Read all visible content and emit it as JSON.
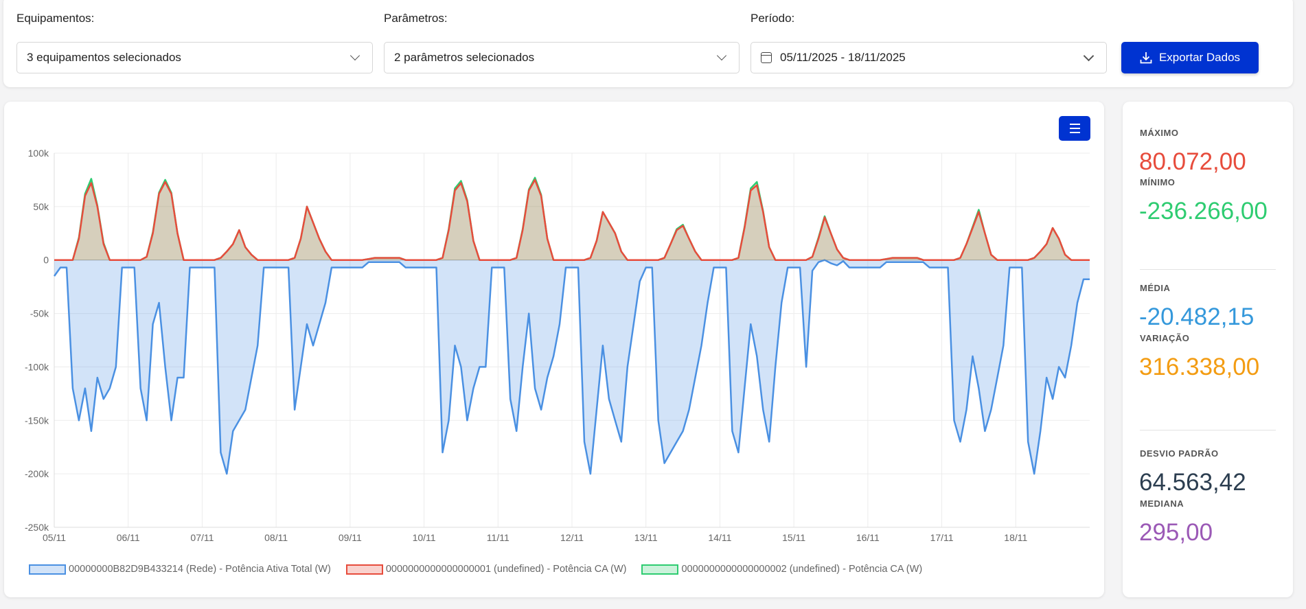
{
  "filters": {
    "equipment_label": "Equipamentos:",
    "equipment_value": "3 equipamentos selecionados",
    "params_label": "Parâmetros:",
    "params_value": "2 parâmetros selecionados",
    "period_label": "Período:",
    "period_value": "05/11/2025 - 18/11/2025",
    "export_label": "Exportar Dados"
  },
  "stats": {
    "max_label": "MÁXIMO",
    "max_value": "80.072,00",
    "max_color": "#e74c3c",
    "min_label": "MÍNIMO",
    "min_value": "-236.266,00",
    "min_color": "#2ecc71",
    "mean_label": "MÉDIA",
    "mean_value": "-20.482,15",
    "mean_color": "#3498db",
    "range_label": "VARIAÇÃO",
    "range_value": "316.338,00",
    "range_color": "#f39c12",
    "std_label": "DESVIO PADRÃO",
    "std_value": "64.563,42",
    "std_color": "#2c3e50",
    "median_label": "MEDIANA",
    "median_value": "295,00",
    "median_color": "#9b59b6"
  },
  "chart_data": {
    "type": "area",
    "ylim": [
      -250000,
      100000
    ],
    "yticks": [
      {
        "v": 100000,
        "label": "100k"
      },
      {
        "v": 50000,
        "label": "50k"
      },
      {
        "v": 0,
        "label": "0"
      },
      {
        "v": -50000,
        "label": "-50k"
      },
      {
        "v": -100000,
        "label": "-100k"
      },
      {
        "v": -150000,
        "label": "-150k"
      },
      {
        "v": -200000,
        "label": "-200k"
      },
      {
        "v": -250000,
        "label": "-250k"
      }
    ],
    "xticks": [
      "05/11",
      "06/11",
      "07/11",
      "08/11",
      "09/11",
      "10/11",
      "11/11",
      "12/11",
      "13/11",
      "14/11",
      "15/11",
      "16/11",
      "17/11",
      "18/11"
    ],
    "grid": true,
    "legend_position": "bottom",
    "unit": "W",
    "sample_hours": [
      "00:00",
      "02:00",
      "04:00",
      "06:00",
      "08:00",
      "10:00",
      "12:00",
      "14:00",
      "16:00",
      "18:00",
      "20:00",
      "22:00"
    ],
    "series": [
      {
        "name": "00000000B82D9B433214 (Rede) - Potência Ativa Total (W)",
        "key": "rede",
        "color": "#4a90e2"
      },
      {
        "name": "0000000000000000001 (undefined) - Potência CA (W)",
        "key": "inv1",
        "color": "#e74c3c"
      },
      {
        "name": "0000000000000000002 (undefined) - Potência CA (W)",
        "key": "inv2",
        "color": "#2ecc71"
      }
    ],
    "days": [
      {
        "date": "05/11",
        "rede": [
          -15000,
          -7000,
          -7000,
          -120000,
          -150000,
          -120000,
          -160000,
          -110000,
          -130000,
          -120000,
          -100000,
          -7000
        ],
        "inv1": [
          0,
          0,
          0,
          0,
          20000,
          60000,
          72000,
          50000,
          15000,
          0,
          0,
          0
        ],
        "inv2": [
          0,
          0,
          0,
          0,
          21000,
          62000,
          76000,
          51000,
          16000,
          0,
          0,
          0
        ]
      },
      {
        "date": "06/11",
        "rede": [
          -7000,
          -7000,
          -120000,
          -150000,
          -60000,
          -40000,
          -100000,
          -150000,
          -110000,
          -110000,
          -7000,
          -7000
        ],
        "inv1": [
          0,
          0,
          0,
          3000,
          25000,
          62000,
          73000,
          62000,
          25000,
          0,
          0,
          0
        ],
        "inv2": [
          0,
          0,
          0,
          3000,
          26000,
          63000,
          75000,
          63000,
          25000,
          0,
          0,
          0
        ]
      },
      {
        "date": "07/11",
        "rede": [
          -7000,
          -7000,
          -7000,
          -180000,
          -200000,
          -160000,
          -150000,
          -140000,
          -110000,
          -80000,
          -7000,
          -7000
        ],
        "inv1": [
          0,
          0,
          0,
          2000,
          8000,
          15000,
          28000,
          12000,
          5000,
          0,
          0,
          0
        ],
        "inv2": [
          0,
          0,
          0,
          2000,
          8000,
          15000,
          28000,
          12000,
          5000,
          0,
          0,
          0
        ]
      },
      {
        "date": "08/11",
        "rede": [
          -7000,
          -7000,
          -7000,
          -140000,
          -100000,
          -60000,
          -80000,
          -60000,
          -40000,
          -7000,
          -7000,
          -7000
        ],
        "inv1": [
          0,
          0,
          0,
          2000,
          20000,
          50000,
          35000,
          20000,
          8000,
          0,
          0,
          0
        ],
        "inv2": [
          0,
          0,
          0,
          2000,
          20000,
          50000,
          35000,
          20000,
          8000,
          0,
          0,
          0
        ]
      },
      {
        "date": "09/11",
        "rede": [
          -7000,
          -7000,
          -7000,
          -2000,
          -2000,
          -2000,
          -2000,
          -2000,
          -2000,
          -7000,
          -7000,
          -7000
        ],
        "inv1": [
          0,
          0,
          0,
          1000,
          2000,
          2000,
          2000,
          2000,
          2000,
          0,
          0,
          0
        ],
        "inv2": [
          0,
          0,
          0,
          1000,
          2000,
          2000,
          2000,
          2000,
          2000,
          0,
          0,
          0
        ]
      },
      {
        "date": "10/11",
        "rede": [
          -7000,
          -7000,
          -7000,
          -180000,
          -150000,
          -80000,
          -100000,
          -150000,
          -120000,
          -100000,
          -100000,
          -7000
        ],
        "inv1": [
          0,
          0,
          0,
          2000,
          28000,
          65000,
          72000,
          55000,
          18000,
          0,
          0,
          0
        ],
        "inv2": [
          0,
          0,
          0,
          2000,
          29000,
          67000,
          74000,
          56000,
          18000,
          0,
          0,
          0
        ]
      },
      {
        "date": "11/11",
        "rede": [
          -7000,
          -7000,
          -130000,
          -160000,
          -100000,
          -50000,
          -120000,
          -140000,
          -110000,
          -90000,
          -60000,
          -7000
        ],
        "inv1": [
          0,
          0,
          0,
          2000,
          28000,
          65000,
          75000,
          60000,
          20000,
          0,
          0,
          0
        ],
        "inv2": [
          0,
          0,
          0,
          2000,
          29000,
          66000,
          77000,
          61000,
          20000,
          0,
          0,
          0
        ]
      },
      {
        "date": "12/11",
        "rede": [
          -7000,
          -7000,
          -170000,
          -200000,
          -140000,
          -80000,
          -130000,
          -150000,
          -170000,
          -100000,
          -60000,
          -20000
        ],
        "inv1": [
          0,
          0,
          0,
          2000,
          18000,
          45000,
          35000,
          25000,
          8000,
          0,
          0,
          0
        ],
        "inv2": [
          0,
          0,
          0,
          2000,
          18000,
          45000,
          35000,
          25000,
          8000,
          0,
          0,
          0
        ]
      },
      {
        "date": "13/11",
        "rede": [
          -7000,
          -7000,
          -150000,
          -190000,
          -180000,
          -170000,
          -160000,
          -140000,
          -110000,
          -80000,
          -40000,
          -7000
        ],
        "inv1": [
          0,
          0,
          0,
          2000,
          15000,
          28000,
          32000,
          20000,
          8000,
          0,
          0,
          0
        ],
        "inv2": [
          0,
          0,
          0,
          2000,
          15000,
          29000,
          33000,
          20000,
          8000,
          0,
          0,
          0
        ]
      },
      {
        "date": "14/11",
        "rede": [
          -7000,
          -7000,
          -160000,
          -180000,
          -120000,
          -60000,
          -90000,
          -140000,
          -170000,
          -100000,
          -40000,
          -7000
        ],
        "inv1": [
          0,
          0,
          0,
          2000,
          30000,
          65000,
          70000,
          45000,
          12000,
          0,
          0,
          0
        ],
        "inv2": [
          0,
          0,
          0,
          2000,
          31000,
          67000,
          73000,
          46000,
          12000,
          0,
          0,
          0
        ]
      },
      {
        "date": "15/11",
        "rede": [
          -7000,
          -7000,
          -100000,
          -10000,
          -2000,
          0,
          -3000,
          -5000,
          -1000,
          -7000,
          -7000,
          -7000
        ],
        "inv1": [
          0,
          0,
          0,
          3000,
          20000,
          40000,
          25000,
          10000,
          2000,
          0,
          0,
          0
        ],
        "inv2": [
          0,
          0,
          0,
          3000,
          21000,
          41000,
          25000,
          10000,
          2000,
          0,
          0,
          0
        ]
      },
      {
        "date": "16/11",
        "rede": [
          -7000,
          -7000,
          -7000,
          -2000,
          -2000,
          -2000,
          -2000,
          -2000,
          -2000,
          -2000,
          -7000,
          -7000
        ],
        "inv1": [
          0,
          0,
          0,
          1000,
          2000,
          2000,
          2000,
          2000,
          2000,
          0,
          0,
          0
        ],
        "inv2": [
          0,
          0,
          0,
          1000,
          2000,
          2000,
          2000,
          2000,
          2000,
          0,
          0,
          0
        ]
      },
      {
        "date": "17/11",
        "rede": [
          -7000,
          -7000,
          -150000,
          -170000,
          -140000,
          -90000,
          -120000,
          -160000,
          -140000,
          -110000,
          -80000,
          -7000
        ],
        "inv1": [
          0,
          0,
          0,
          2000,
          15000,
          30000,
          45000,
          25000,
          5000,
          0,
          0,
          0
        ],
        "inv2": [
          0,
          0,
          0,
          2000,
          15000,
          31000,
          47000,
          25000,
          5000,
          0,
          0,
          0
        ]
      },
      {
        "date": "18/11",
        "rede": [
          -7000,
          -7000,
          -170000,
          -200000,
          -160000,
          -110000,
          -130000,
          -100000,
          -110000,
          -80000,
          -40000,
          -18000
        ],
        "inv1": [
          0,
          0,
          0,
          2000,
          8000,
          15000,
          30000,
          20000,
          5000,
          0,
          0,
          0
        ],
        "inv2": [
          0,
          0,
          0,
          2000,
          8000,
          15000,
          30000,
          20000,
          5000,
          0,
          0,
          0
        ]
      }
    ]
  }
}
